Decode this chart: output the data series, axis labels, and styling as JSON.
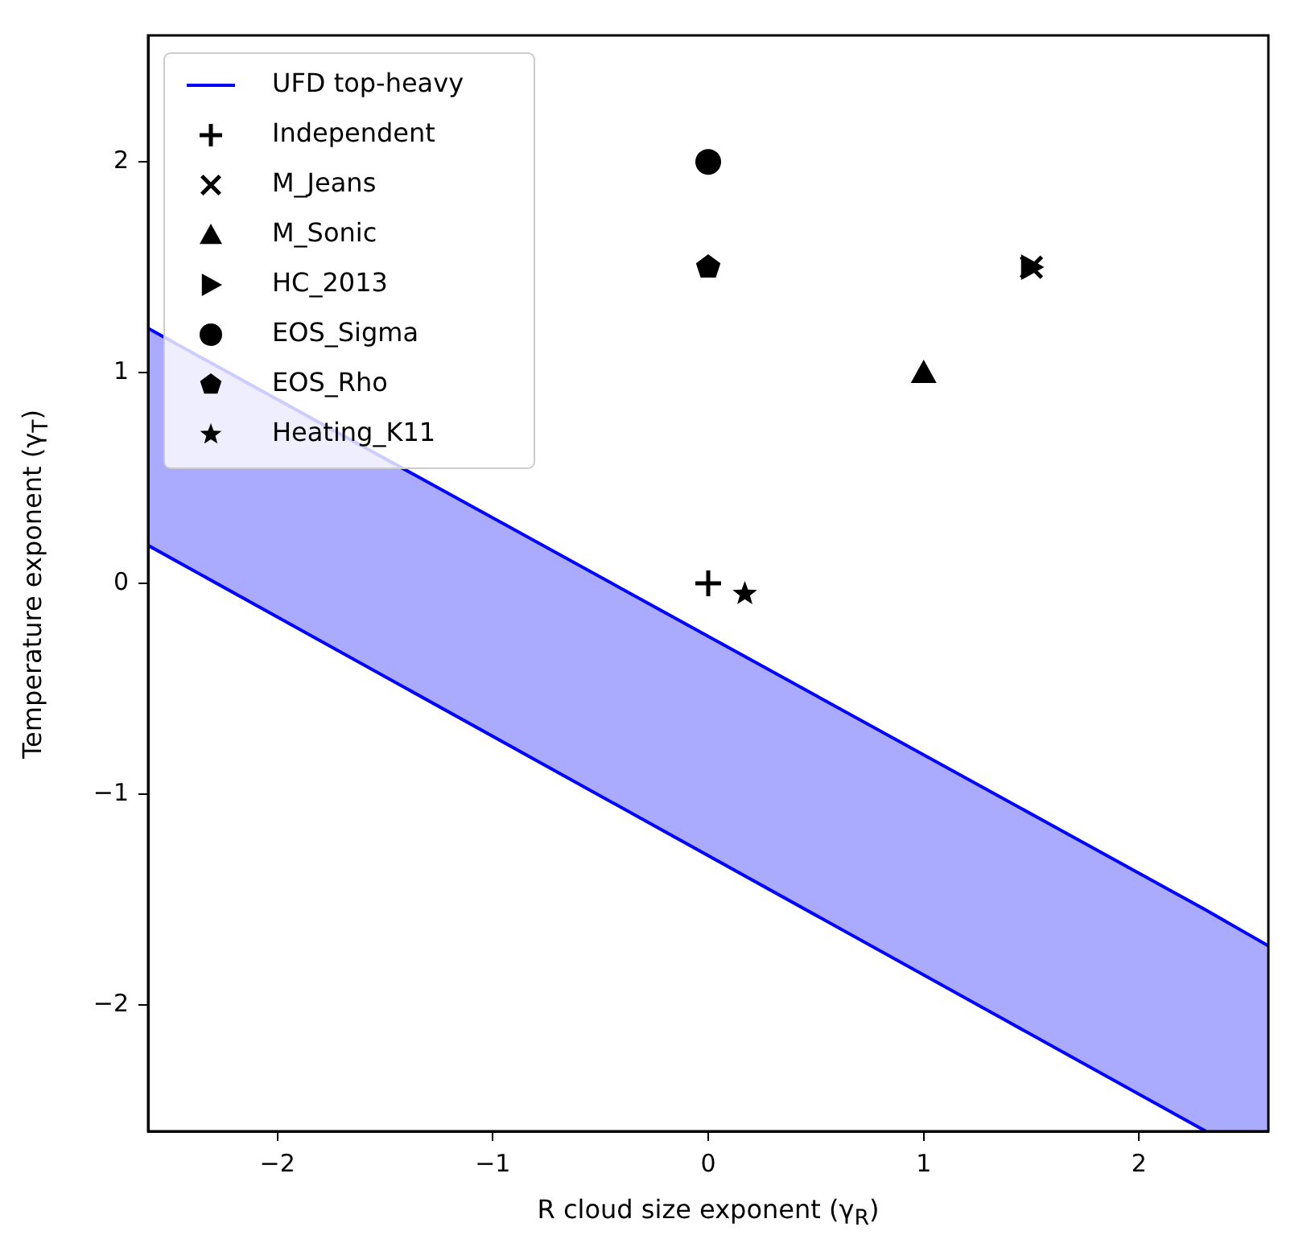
{
  "chart_data": {
    "type": "scatter",
    "xlabel": "R cloud size exponent (γ$_{R}$)",
    "ylabel": "Temperature exponent (γ$_{T}$)",
    "xlim": [
      -2.6,
      2.6
    ],
    "ylim": [
      -2.6,
      2.6
    ],
    "xticks": [
      -2,
      -1,
      0,
      1,
      2
    ],
    "yticks": [
      -2,
      -1,
      0,
      1,
      2
    ],
    "grid": false,
    "legend": "top left",
    "series": [
      {
        "name": "UFD top-heavy",
        "type": "line",
        "color": "#0000ff",
        "marker": "none",
        "x": [
          -2.6,
          2.31,
          2.6
        ],
        "values": [
          1.21,
          -1.55,
          -1.72
        ],
        "lower": [
          0.18,
          -2.6,
          -2.6
        ],
        "upper": [
          1.21,
          -1.55,
          -1.72
        ]
      },
      {
        "type": "line",
        "color": "#0000ff",
        "marker": "none",
        "x": [
          -2.6,
          2.31
        ],
        "values": [
          0.18,
          -2.6
        ]
      },
      {
        "name": "Independent",
        "color": "#000000",
        "marker": "plus",
        "x": [
          0
        ],
        "values": [
          0
        ]
      },
      {
        "name": "M_Jeans",
        "color": "#000000",
        "marker": "x",
        "x": [
          1.5
        ],
        "values": [
          1.5
        ]
      },
      {
        "name": "M_Sonic",
        "color": "#000000",
        "marker": "triangle",
        "x": [
          1
        ],
        "values": [
          1
        ]
      },
      {
        "name": "HC_2013",
        "color": "#000000",
        "marker": "triangle-right",
        "x": [
          1.5
        ],
        "values": [
          1.5
        ]
      },
      {
        "name": "EOS_Sigma",
        "color": "#000000",
        "marker": "circle",
        "x": [
          0
        ],
        "values": [
          2
        ]
      },
      {
        "name": "EOS_Rho",
        "color": "#000000",
        "x": [
          0
        ],
        "values": [
          1.5
        ]
      },
      {
        "name": "Heating_K11",
        "color": "#000000",
        "marker": "star",
        "x": [
          0.17
        ],
        "values": [
          -0.05
        ]
      }
    ]
  }
}
